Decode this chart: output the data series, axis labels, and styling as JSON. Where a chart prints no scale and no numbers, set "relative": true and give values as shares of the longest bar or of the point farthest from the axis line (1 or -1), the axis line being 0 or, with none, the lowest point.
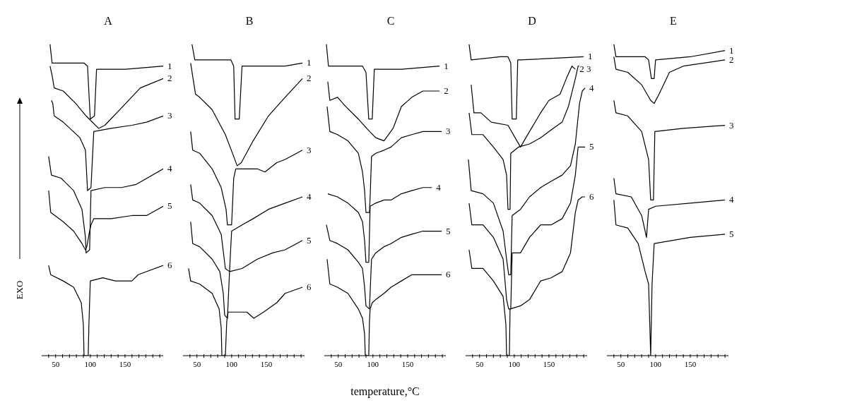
{
  "chart_data": [
    {
      "type": "line",
      "title": "A",
      "ylabel": "EXO",
      "relative": true,
      "tick_labels": "x",
      "xlim": [
        30,
        205
      ],
      "xticks": [
        {
          "value": 40,
          "label": null
        },
        50,
        {
          "value": 60,
          "label": null
        },
        {
          "value": 70,
          "label": null
        },
        {
          "value": 80,
          "label": null
        },
        {
          "value": 90,
          "label": null
        },
        100,
        {
          "value": 110,
          "label": null
        },
        {
          "value": 120,
          "label": null
        },
        {
          "value": 130,
          "label": null
        },
        {
          "value": 140,
          "label": null
        },
        150,
        {
          "value": 160,
          "label": null
        },
        {
          "value": 170,
          "label": null
        },
        {
          "value": 180,
          "label": null
        },
        {
          "value": 190,
          "label": null
        },
        {
          "value": 200,
          "label": null
        }
      ],
      "series": [
        {
          "name": "1",
          "color": "#000000",
          "x": [
            42,
            45,
            91,
            96,
            100,
            106,
            109,
            151,
            205
          ],
          "values": [
            1.0,
            0.94,
            0.94,
            0.93,
            0.76,
            0.77,
            0.92,
            0.92,
            0.93
          ]
        },
        {
          "name": "2",
          "color": "#000000",
          "x": [
            42,
            45,
            48,
            61,
            79,
            94,
            112,
            121,
            151,
            172,
            205
          ],
          "values": [
            0.93,
            0.9,
            0.86,
            0.85,
            0.81,
            0.77,
            0.73,
            0.74,
            0.81,
            0.86,
            0.89
          ]
        },
        {
          "name": "3",
          "color": "#000000",
          "x": [
            44,
            46,
            48,
            61,
            85,
            93,
            96,
            101,
            105,
            130,
            160,
            181,
            205
          ],
          "values": [
            0.82,
            0.81,
            0.77,
            0.75,
            0.7,
            0.66,
            0.53,
            0.54,
            0.72,
            0.73,
            0.74,
            0.75,
            0.77
          ]
        },
        {
          "name": "4",
          "color": "#000000",
          "x": [
            40,
            44,
            58,
            76,
            88,
            93,
            94,
            99,
            101,
            121,
            145,
            166,
            205
          ],
          "values": [
            0.64,
            0.58,
            0.57,
            0.53,
            0.47,
            0.38,
            0.33,
            0.34,
            0.53,
            0.54,
            0.54,
            0.55,
            0.6
          ]
        },
        {
          "name": "5",
          "color": "#000000",
          "x": [
            40,
            43,
            61,
            76,
            88,
            93,
            95,
            99,
            101,
            105,
            130,
            160,
            181,
            205
          ],
          "values": [
            0.53,
            0.46,
            0.43,
            0.4,
            0.36,
            0.34,
            0.35,
            0.4,
            0.42,
            0.44,
            0.44,
            0.45,
            0.45,
            0.48
          ]
        },
        {
          "name": "6",
          "color": "#000000",
          "x": [
            40,
            43,
            61,
            76,
            87,
            90,
            91,
            97,
            98,
            100,
            118,
            136,
            148,
            160,
            169,
            205
          ],
          "values": [
            0.29,
            0.26,
            0.24,
            0.22,
            0.17,
            0.1,
            0,
            0,
            0.1,
            0.24,
            0.25,
            0.24,
            0.24,
            0.24,
            0.26,
            0.29
          ]
        }
      ]
    },
    {
      "type": "line",
      "title": "B",
      "relative": true,
      "tick_labels": "x",
      "xlim": [
        30,
        205
      ],
      "xticks": [
        {
          "value": 40,
          "label": null
        },
        50,
        {
          "value": 60,
          "label": null
        },
        {
          "value": 70,
          "label": null
        },
        {
          "value": 80,
          "label": null
        },
        {
          "value": 90,
          "label": null
        },
        100,
        {
          "value": 110,
          "label": null
        },
        {
          "value": 120,
          "label": null
        },
        {
          "value": 130,
          "label": null
        },
        {
          "value": 140,
          "label": null
        },
        150,
        {
          "value": 160,
          "label": null
        },
        {
          "value": 170,
          "label": null
        },
        {
          "value": 180,
          "label": null
        },
        {
          "value": 190,
          "label": null
        },
        {
          "value": 200,
          "label": null
        }
      ],
      "series": [
        {
          "name": "1",
          "color": "#000000",
          "x": [
            43,
            47,
            99,
            103,
            105,
            111,
            115,
            177,
            202
          ],
          "values": [
            1.0,
            0.95,
            0.95,
            0.93,
            0.76,
            0.76,
            0.93,
            0.93,
            0.94
          ]
        },
        {
          "name": "2",
          "color": "#000000",
          "x": [
            41,
            48,
            54,
            72,
            91,
            103,
            108,
            114,
            131,
            153,
            177,
            202
          ],
          "values": [
            0.94,
            0.84,
            0.83,
            0.79,
            0.71,
            0.64,
            0.61,
            0.62,
            0.69,
            0.77,
            0.83,
            0.89
          ]
        },
        {
          "name": "3",
          "color": "#000000",
          "x": [
            41,
            44,
            54,
            72,
            85,
            92,
            94,
            100,
            103,
            106,
            122,
            137,
            148,
            165,
            177,
            202
          ],
          "values": [
            0.72,
            0.66,
            0.65,
            0.6,
            0.54,
            0.47,
            0.42,
            0.42,
            0.57,
            0.6,
            0.6,
            0.6,
            0.59,
            0.62,
            0.63,
            0.66
          ]
        },
        {
          "name": "4",
          "color": "#000000",
          "x": [
            41,
            44,
            54,
            72,
            85,
            91,
            97,
            100,
            115,
            131,
            153,
            177,
            202
          ],
          "values": [
            0.55,
            0.5,
            0.49,
            0.45,
            0.39,
            0.28,
            0.27,
            0.4,
            0.42,
            0.44,
            0.47,
            0.49,
            0.51
          ]
        },
        {
          "name": "5",
          "color": "#000000",
          "x": [
            41,
            44,
            54,
            72,
            83,
            88,
            90,
            94,
            97,
            115,
            137,
            159,
            177,
            202
          ],
          "values": [
            0.43,
            0.36,
            0.35,
            0.31,
            0.27,
            0.2,
            0.13,
            0.12,
            0.27,
            0.28,
            0.31,
            0.33,
            0.34,
            0.37
          ]
        },
        {
          "name": "6",
          "color": "#000000",
          "x": [
            38,
            41,
            54,
            72,
            82,
            85,
            86,
            91,
            93,
            95,
            112,
            122,
            132,
            146,
            165,
            177,
            202
          ],
          "values": [
            0.28,
            0.24,
            0.23,
            0.2,
            0.15,
            0.09,
            0,
            0,
            0.11,
            0.14,
            0.14,
            0.14,
            0.12,
            0.14,
            0.17,
            0.2,
            0.22
          ]
        }
      ]
    },
    {
      "type": "line",
      "title": "C",
      "xlabel": "temperature,°C",
      "relative": true,
      "tick_labels": "x",
      "xlim": [
        30,
        205
      ],
      "xticks": [
        {
          "value": 40,
          "label": null
        },
        50,
        {
          "value": 60,
          "label": null
        },
        {
          "value": 70,
          "label": null
        },
        {
          "value": 80,
          "label": null
        },
        {
          "value": 90,
          "label": null
        },
        100,
        {
          "value": 110,
          "label": null
        },
        {
          "value": 120,
          "label": null
        },
        {
          "value": 130,
          "label": null
        },
        {
          "value": 140,
          "label": null
        },
        150,
        {
          "value": 160,
          "label": null
        },
        {
          "value": 170,
          "label": null
        },
        {
          "value": 180,
          "label": null
        },
        {
          "value": 190,
          "label": null
        },
        {
          "value": 200,
          "label": null
        }
      ],
      "series": [
        {
          "name": "1",
          "color": "#000000",
          "x": [
            33,
            36,
            85,
            90,
            94,
            99,
            102,
            110,
            141,
            196
          ],
          "values": [
            1.0,
            0.93,
            0.93,
            0.91,
            0.76,
            0.76,
            0.92,
            0.92,
            0.92,
            0.93
          ]
        },
        {
          "name": "2",
          "color": "#000000",
          "x": [
            35,
            38,
            49,
            61,
            79,
            91,
            104,
            116,
            129,
            141,
            156,
            172,
            196
          ],
          "values": [
            0.88,
            0.82,
            0.83,
            0.8,
            0.76,
            0.73,
            0.7,
            0.69,
            0.73,
            0.8,
            0.83,
            0.85,
            0.85
          ]
        },
        {
          "name": "3",
          "color": "#000000",
          "x": [
            34,
            38,
            49,
            64,
            79,
            85,
            88,
            90,
            95,
            96,
            98,
            104,
            116,
            126,
            141,
            156,
            172,
            199
          ],
          "values": [
            0.8,
            0.72,
            0.71,
            0.69,
            0.65,
            0.59,
            0.53,
            0.46,
            0.46,
            0.51,
            0.64,
            0.65,
            0.66,
            0.67,
            0.7,
            0.71,
            0.72,
            0.72
          ]
        },
        {
          "name": "4",
          "color": "#000000",
          "x": [
            35,
            49,
            64,
            79,
            85,
            88,
            90,
            94,
            96,
            104,
            116,
            126,
            141,
            156,
            172,
            185
          ],
          "values": [
            0.52,
            0.51,
            0.49,
            0.46,
            0.43,
            0.37,
            0.3,
            0.3,
            0.48,
            0.49,
            0.5,
            0.5,
            0.52,
            0.53,
            0.54,
            0.54
          ]
        },
        {
          "name": "5",
          "color": "#000000",
          "x": [
            33,
            38,
            49,
            64,
            79,
            85,
            88,
            90,
            95,
            98,
            104,
            116,
            126,
            141,
            156,
            172,
            199
          ],
          "values": [
            0.42,
            0.37,
            0.36,
            0.34,
            0.3,
            0.28,
            0.22,
            0.16,
            0.15,
            0.31,
            0.33,
            0.35,
            0.36,
            0.38,
            0.39,
            0.4,
            0.4
          ]
        },
        {
          "name": "6",
          "color": "#000000",
          "x": [
            34,
            38,
            49,
            64,
            79,
            85,
            88,
            89,
            94,
            95,
            96,
            99,
            104,
            116,
            126,
            141,
            156,
            172,
            199
          ],
          "values": [
            0.31,
            0.23,
            0.22,
            0.2,
            0.15,
            0.12,
            0.07,
            0,
            0,
            0.11,
            0.15,
            0.17,
            0.18,
            0.2,
            0.22,
            0.24,
            0.26,
            0.26,
            0.26
          ]
        }
      ]
    },
    {
      "type": "line",
      "title": "D",
      "relative": true,
      "tick_labels": "x",
      "xlim": [
        30,
        205
      ],
      "xticks": [
        {
          "value": 40,
          "label": null
        },
        50,
        {
          "value": 60,
          "label": null
        },
        {
          "value": 70,
          "label": null
        },
        {
          "value": 80,
          "label": null
        },
        {
          "value": 90,
          "label": null
        },
        100,
        {
          "value": 110,
          "label": null
        },
        {
          "value": 120,
          "label": null
        },
        {
          "value": 130,
          "label": null
        },
        {
          "value": 140,
          "label": null
        },
        150,
        {
          "value": 160,
          "label": null
        },
        {
          "value": 170,
          "label": null
        },
        {
          "value": 180,
          "label": null
        },
        {
          "value": 190,
          "label": null
        },
        {
          "value": 200,
          "label": null
        }
      ],
      "series": [
        {
          "name": "1",
          "color": "#000000",
          "x": [
            35,
            38,
            80,
            91,
            95,
            97,
            103,
            105,
            109,
            200
          ],
          "values": [
            1.0,
            0.95,
            0.96,
            0.96,
            0.94,
            0.76,
            0.76,
            0.95,
            0.95,
            0.96
          ]
        },
        {
          "name": "2",
          "color": "#000000",
          "x": [
            38,
            42,
            52,
            67,
            91,
            109,
            122,
            138,
            150,
            166,
            175,
            183,
            188
          ],
          "values": [
            0.87,
            0.78,
            0.78,
            0.75,
            0.74,
            0.67,
            0.72,
            0.78,
            0.82,
            0.84,
            0.89,
            0.93,
            0.92
          ]
        },
        {
          "name": "3",
          "color": "#000000",
          "x": [
            35,
            39,
            55,
            70,
            84,
            89,
            91,
            94,
            95,
            106,
            122,
            138,
            156,
            169,
            178,
            188,
            192,
            197,
            198
          ],
          "values": [
            0.78,
            0.71,
            0.71,
            0.67,
            0.63,
            0.58,
            0.47,
            0.47,
            0.65,
            0.67,
            0.68,
            0.7,
            0.73,
            0.75,
            0.8,
            0.89,
            0.93,
            0.93,
            0.92
          ]
        },
        {
          "name": "4",
          "color": "#000000",
          "x": [
            34,
            38,
            55,
            70,
            84,
            89,
            92,
            95,
            97,
            109,
            122,
            138,
            153,
            169,
            181,
            188,
            194,
            198,
            202
          ],
          "values": [
            0.63,
            0.53,
            0.52,
            0.49,
            0.4,
            0.31,
            0.26,
            0.26,
            0.45,
            0.47,
            0.51,
            0.54,
            0.56,
            0.58,
            0.61,
            0.68,
            0.81,
            0.85,
            0.86
          ]
        },
        {
          "name": "5",
          "color": "#000000",
          "x": [
            35,
            39,
            55,
            70,
            84,
            89,
            92,
            95,
            97,
            109,
            122,
            138,
            153,
            169,
            181,
            188,
            192,
            198,
            202
          ],
          "values": [
            0.49,
            0.42,
            0.42,
            0.38,
            0.31,
            0.18,
            0.15,
            0.15,
            0.33,
            0.33,
            0.38,
            0.42,
            0.42,
            0.44,
            0.49,
            0.58,
            0.67,
            0.67,
            0.67
          ]
        },
        {
          "name": "6",
          "color": "#000000",
          "x": [
            35,
            39,
            55,
            70,
            84,
            88,
            89,
            93,
            94,
            109,
            122,
            138,
            153,
            169,
            181,
            188,
            192,
            198,
            202
          ],
          "values": [
            0.34,
            0.28,
            0.28,
            0.24,
            0.19,
            0.1,
            0,
            0,
            0.15,
            0.16,
            0.18,
            0.24,
            0.25,
            0.27,
            0.33,
            0.46,
            0.5,
            0.51,
            0.51
          ]
        }
      ]
    },
    {
      "type": "line",
      "title": "E",
      "relative": true,
      "tick_labels": "x",
      "xlim": [
        30,
        205
      ],
      "xticks": [
        {
          "value": 40,
          "label": null
        },
        50,
        {
          "value": 60,
          "label": null
        },
        {
          "value": 70,
          "label": null
        },
        {
          "value": 80,
          "label": null
        },
        {
          "value": 90,
          "label": null
        },
        100,
        {
          "value": 110,
          "label": null
        },
        {
          "value": 120,
          "label": null
        },
        {
          "value": 130,
          "label": null
        },
        {
          "value": 140,
          "label": null
        },
        150,
        {
          "value": 160,
          "label": null
        },
        {
          "value": 170,
          "label": null
        },
        {
          "value": 180,
          "label": null
        },
        {
          "value": 190,
          "label": null
        },
        {
          "value": 200,
          "label": null
        }
      ],
      "series": [
        {
          "name": "1",
          "color": "#000000",
          "x": [
            40,
            43,
            85,
            90,
            94,
            98,
            100,
            150,
            200
          ],
          "values": [
            1.0,
            0.96,
            0.96,
            0.95,
            0.89,
            0.89,
            0.95,
            0.96,
            0.98
          ]
        },
        {
          "name": "2",
          "color": "#000000",
          "x": [
            40,
            43,
            60,
            80,
            93,
            98,
            105,
            120,
            140,
            200
          ],
          "values": [
            0.96,
            0.92,
            0.91,
            0.87,
            0.82,
            0.81,
            0.84,
            0.91,
            0.93,
            0.95
          ]
        },
        {
          "name": "3",
          "color": "#000000",
          "x": [
            40,
            43,
            60,
            80,
            90,
            93,
            97,
            99,
            140,
            200
          ],
          "values": [
            0.82,
            0.78,
            0.77,
            0.72,
            0.63,
            0.5,
            0.5,
            0.72,
            0.73,
            0.74
          ]
        },
        {
          "name": "4",
          "color": "#000000",
          "x": [
            40,
            43,
            65,
            80,
            87,
            90,
            100,
            150,
            200
          ],
          "values": [
            0.57,
            0.52,
            0.51,
            0.45,
            0.38,
            0.47,
            0.48,
            0.49,
            0.5
          ]
        },
        {
          "name": "5",
          "color": "#000000",
          "x": [
            40,
            43,
            60,
            75,
            85,
            90,
            93,
            95,
            98,
            150,
            200
          ],
          "values": [
            0.5,
            0.42,
            0.41,
            0.36,
            0.27,
            0.23,
            0,
            0.23,
            0.36,
            0.38,
            0.39
          ]
        }
      ]
    }
  ]
}
